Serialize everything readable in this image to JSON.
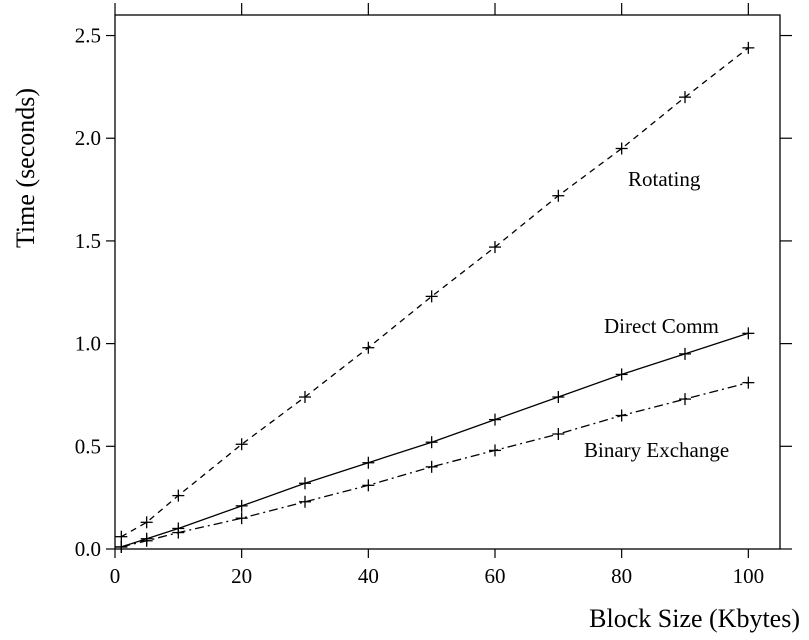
{
  "chart_data": {
    "type": "line",
    "title": "",
    "xlabel": "Block Size (Kbytes)",
    "ylabel": "Time (seconds)",
    "xlim": [
      0,
      105
    ],
    "ylim": [
      0,
      2.6
    ],
    "xticks": [
      0,
      20,
      40,
      60,
      80,
      100
    ],
    "xtick_labels": [
      "0",
      "20",
      "40",
      "60",
      "80",
      "100"
    ],
    "yticks": [
      0,
      0.5,
      1.0,
      1.5,
      2.0,
      2.5
    ],
    "ytick_labels": [
      "0.0",
      "0.5",
      "1.0",
      "1.5",
      "2.0",
      "2.5"
    ],
    "grid": false,
    "series": [
      {
        "name": "Rotating",
        "line_style": "dashed",
        "x": [
          1,
          5,
          10,
          20,
          30,
          40,
          50,
          60,
          70,
          80,
          90,
          100
        ],
        "y": [
          0.06,
          0.13,
          0.26,
          0.51,
          0.74,
          0.98,
          1.23,
          1.47,
          1.72,
          1.95,
          2.2,
          2.44
        ]
      },
      {
        "name": "Direct Comm",
        "line_style": "solid",
        "x": [
          1,
          5,
          10,
          20,
          30,
          40,
          50,
          60,
          70,
          80,
          90,
          100
        ],
        "y": [
          0.01,
          0.05,
          0.1,
          0.21,
          0.32,
          0.42,
          0.52,
          0.63,
          0.74,
          0.85,
          0.95,
          1.05
        ]
      },
      {
        "name": "Binary Exchange",
        "line_style": "dash-dot",
        "x": [
          1,
          5,
          10,
          20,
          30,
          40,
          50,
          60,
          70,
          80,
          90,
          100
        ],
        "y": [
          0.01,
          0.04,
          0.08,
          0.15,
          0.23,
          0.31,
          0.4,
          0.48,
          0.56,
          0.65,
          0.73,
          0.81
        ]
      }
    ]
  }
}
